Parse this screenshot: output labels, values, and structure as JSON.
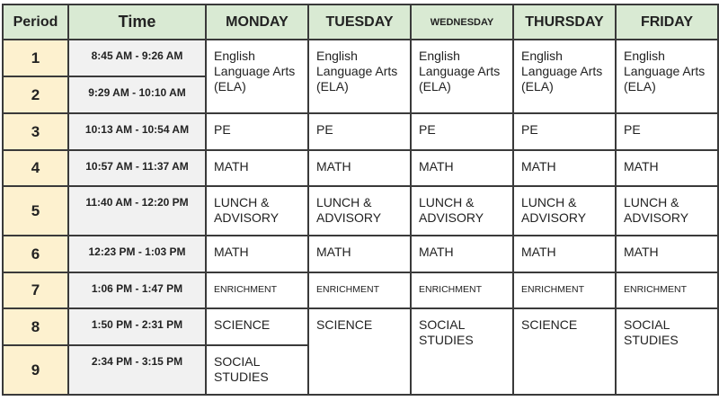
{
  "headers": [
    "Period",
    "Time",
    "MONDAY",
    "TUESDAY",
    "WEDNESDAY",
    "THURSDAY",
    "FRIDAY"
  ],
  "periods": [
    {
      "num": "1",
      "time": "8:45 AM - 9:26 AM"
    },
    {
      "num": "2",
      "time": "9:29 AM - 10:10 AM"
    },
    {
      "num": "3",
      "time": "10:13 AM - 10:54 AM"
    },
    {
      "num": "4",
      "time": "10:57 AM - 11:37 AM"
    },
    {
      "num": "5",
      "time": "11:40 AM - 12:20 PM"
    },
    {
      "num": "6",
      "time": "12:23 PM - 1:03 PM"
    },
    {
      "num": "7",
      "time": "1:06 PM - 1:47 PM"
    },
    {
      "num": "8",
      "time": "1:50 PM - 2:31 PM"
    },
    {
      "num": "9",
      "time": "2:34 PM - 3:15 PM"
    }
  ],
  "classes": {
    "ela": "English Language Arts (ELA)",
    "pe": "PE",
    "math": "MATH",
    "lunch": "LUNCH & ADVISORY",
    "enrichment": "ENRICHMENT",
    "science": "SCIENCE",
    "social": "SOCIAL STUDIES"
  },
  "colors": {
    "header": "#d9ead3",
    "period": "#fdf1cf",
    "time": "#f1f1f1",
    "border": "#3a3a3a"
  }
}
